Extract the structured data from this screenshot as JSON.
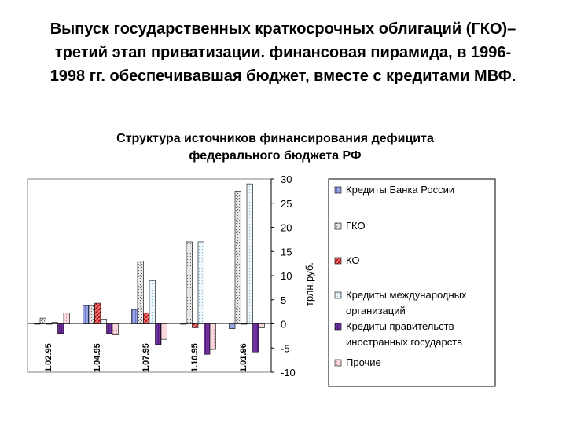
{
  "slide": {
    "title_line1": "Выпуск государственных краткосрочных облигаций (ГКО)–",
    "title_line2": "третий этап приватизации. финансовая пирамида, в 1996-",
    "title_line3": "1998 гг. обеспечивавшая бюджет, вместе с кредитами МВФ."
  },
  "chart_data": {
    "type": "bar",
    "title_line1": "Структура источников финансирования дефицита",
    "title_line2": "федерального бюджета РФ",
    "xlabel": "",
    "ylabel": "трлн.руб.",
    "ylim": [
      -10,
      30
    ],
    "yticks": [
      30,
      25,
      20,
      15,
      10,
      5,
      0,
      -5,
      -10
    ],
    "grid": false,
    "legend_position": "right",
    "categories": [
      "1.02.95",
      "1.04.95",
      "1.07.95",
      "1.10.95",
      "1.01.96"
    ],
    "series": [
      {
        "name": "Кредиты Банка России",
        "color": "#9aa4e0",
        "values": [
          0,
          3.8,
          3,
          0,
          -1
        ]
      },
      {
        "name": "ГКО",
        "color": "#c8c8c8",
        "values": [
          1.2,
          3.8,
          13,
          17,
          27.5
        ]
      },
      {
        "name": "КО",
        "color": "#e04040",
        "values": [
          0,
          4.3,
          2.3,
          -0.8,
          0
        ]
      },
      {
        "name": "Кредиты международных организаций",
        "color": "#e6f4fa",
        "values": [
          0.3,
          1,
          9,
          17,
          29
        ]
      },
      {
        "name": "Кредиты правительств иностранных государств",
        "color": "#6a2a8a",
        "values": [
          -2,
          -2,
          -4.3,
          -6.3,
          -5.8
        ]
      },
      {
        "name": "Прочие",
        "color": "#f4c8cc",
        "values": [
          2.3,
          -2.3,
          -3.2,
          -5.3,
          -0.8
        ]
      }
    ]
  }
}
